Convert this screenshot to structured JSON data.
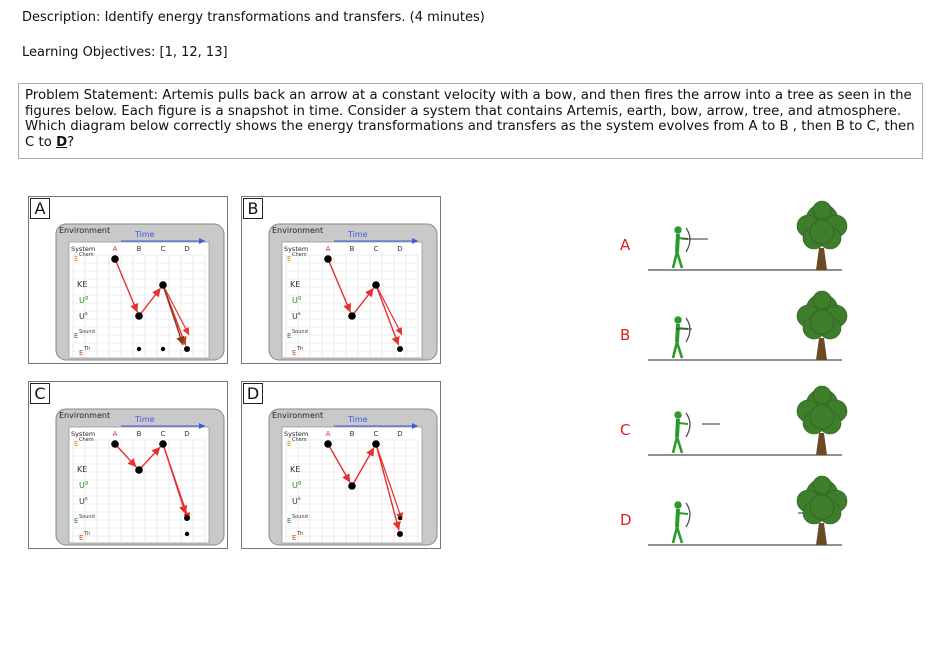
{
  "header": {
    "description_label": "Description:",
    "description_text": "Identify energy transformations and transfers. (4 minutes)",
    "objectives_label": "Learning Objectives:",
    "objectives_text": "[1, 12, 13]"
  },
  "problem": {
    "label": "Problem Statement:",
    "text": "Artemis pulls back an arrow at a constant velocity with a bow, and then fires the arrow into a tree as seen in the figures below. Each figure is a snapshot in time. Consider a system that contains Artemis, earth, bow, arrow, tree, and atmosphere. Which diagram below correctly shows the energy transformations and transfers as the system evolves from A to B , then B to C, then C to ",
    "final_letter": "D",
    "final_mark": "?"
  },
  "diagram_labels": {
    "environment": "Environment",
    "time": "Time",
    "system": "System",
    "columns": [
      "A",
      "B",
      "C",
      "D"
    ],
    "rows": [
      "Chem",
      "KE",
      "Ug",
      "Us",
      "Sound",
      "Th"
    ]
  },
  "panels": [
    {
      "letter": "A",
      "path": [
        [
          0,
          0
        ],
        [
          1,
          3
        ],
        [
          2,
          1
        ],
        [
          3,
          5
        ]
      ],
      "brown": true,
      "dots": [
        [
          1,
          5
        ],
        [
          2,
          5
        ],
        [
          3,
          5
        ]
      ]
    },
    {
      "letter": "B",
      "path": [
        [
          0,
          0
        ],
        [
          1,
          3
        ],
        [
          2,
          1
        ],
        [
          3,
          5
        ]
      ],
      "brown": false,
      "dots": [
        [
          3,
          5
        ]
      ]
    },
    {
      "letter": "C",
      "path": [
        [
          0,
          0
        ],
        [
          1,
          1
        ],
        [
          2,
          0
        ],
        [
          3,
          4
        ]
      ],
      "brown": false,
      "dots": [
        [
          3,
          5
        ]
      ]
    },
    {
      "letter": "D",
      "path": [
        [
          0,
          0
        ],
        [
          1,
          2
        ],
        [
          2,
          0
        ],
        [
          3,
          5
        ]
      ],
      "brown": false,
      "dots": [
        [
          3,
          4
        ]
      ]
    }
  ],
  "scenes": [
    {
      "letter": "A",
      "arrow": "nocked"
    },
    {
      "letter": "B",
      "arrow": "drawn"
    },
    {
      "letter": "C",
      "arrow": "flying"
    },
    {
      "letter": "D",
      "arrow": "in-tree"
    }
  ],
  "colors": {
    "red_arrow": "#e53030",
    "brown_arrow": "#7a4010",
    "archer": "#2a9a2a",
    "tree_leaf": "#3e7d2a",
    "scene_letter": "#dd2222",
    "time_arrow": "#3a5be0"
  }
}
